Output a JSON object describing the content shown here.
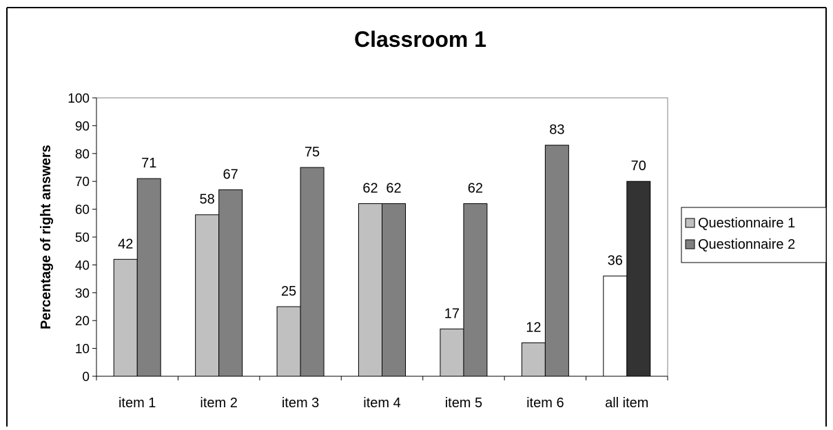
{
  "chart_data": {
    "type": "bar",
    "title": "Classroom 1",
    "xlabel": "",
    "ylabel": "Percentage of right answers",
    "ylim": [
      0,
      100
    ],
    "yticks": [
      0,
      10,
      20,
      30,
      40,
      50,
      60,
      70,
      80,
      90,
      100
    ],
    "grid": false,
    "legend_position": "right",
    "categories": [
      "item 1",
      "item 2",
      "item 3",
      "item 4",
      "item 5",
      "item 6",
      "all item"
    ],
    "series": [
      {
        "name": "Questionnaire 1",
        "values": [
          42,
          58,
          25,
          62,
          17,
          12,
          36
        ],
        "color": "#c0c0c0",
        "highlight_color": "#ffffff"
      },
      {
        "name": "Questionnaire 2",
        "values": [
          71,
          67,
          75,
          62,
          62,
          83,
          70
        ],
        "color": "#808080",
        "highlight_color": "#333333"
      }
    ],
    "highlight_category": "all item"
  }
}
